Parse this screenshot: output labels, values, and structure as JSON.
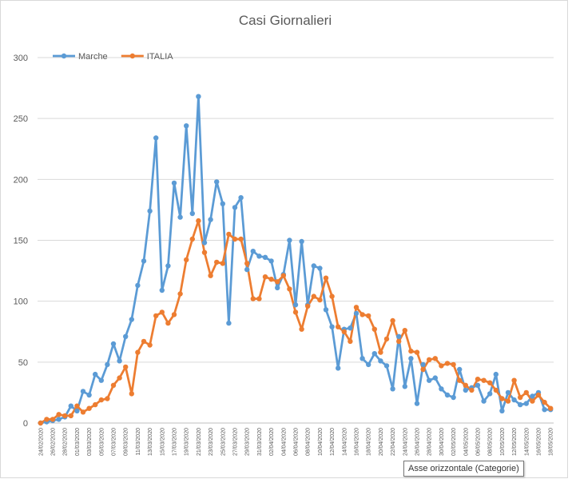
{
  "chart_data": {
    "type": "line",
    "title": "Casi Giornalieri",
    "ylim": [
      0,
      300
    ],
    "yticks": [
      "0",
      "50",
      "100",
      "150",
      "200",
      "250",
      "300"
    ],
    "grid": true,
    "legend_position": "top-left",
    "categories": [
      "24/02/2020",
      "25/02/2020",
      "26/02/2020",
      "27/02/2020",
      "28/02/2020",
      "29/02/2020",
      "01/03/2020",
      "02/03/2020",
      "03/03/2020",
      "04/03/2020",
      "05/03/2020",
      "06/03/2020",
      "07/03/2020",
      "08/03/2020",
      "09/03/2020",
      "10/03/2020",
      "11/03/2020",
      "12/03/2020",
      "13/03/2020",
      "14/03/2020",
      "15/03/2020",
      "16/03/2020",
      "17/03/2020",
      "18/03/2020",
      "19/03/2020",
      "20/03/2020",
      "21/03/2020",
      "22/03/2020",
      "23/03/2020",
      "24/03/2020",
      "25/03/2020",
      "26/03/2020",
      "27/03/2020",
      "28/03/2020",
      "29/03/2020",
      "30/03/2020",
      "31/03/2020",
      "01/04/2020",
      "02/04/2020",
      "03/04/2020",
      "04/04/2020",
      "05/04/2020",
      "06/04/2020",
      "07/04/2020",
      "08/04/2020",
      "09/04/2020",
      "10/04/2020",
      "11/04/2020",
      "12/04/2020",
      "13/04/2020",
      "14/04/2020",
      "15/04/2020",
      "16/04/2020",
      "17/04/2020",
      "18/04/2020",
      "19/04/2020",
      "20/04/2020",
      "21/04/2020",
      "22/04/2020",
      "23/04/2020",
      "24/04/2020",
      "25/04/2020",
      "26/04/2020",
      "27/04/2020",
      "28/04/2020",
      "29/04/2020",
      "30/04/2020",
      "01/05/2020",
      "02/05/2020",
      "03/05/2020",
      "04/05/2020",
      "05/05/2020",
      "06/05/2020",
      "07/05/2020",
      "08/05/2020",
      "09/05/2020",
      "10/05/2020",
      "11/05/2020",
      "12/05/2020",
      "13/05/2020",
      "14/05/2020",
      "15/05/2020",
      "16/05/2020",
      "17/05/2020",
      "18/05/2020"
    ],
    "xtick_labels": [
      "24/02/2020",
      "26/02/2020",
      "28/02/2020",
      "01/03/2020",
      "03/03/2020",
      "05/03/2020",
      "07/03/2020",
      "09/03/2020",
      "11/03/2020",
      "13/03/2020",
      "15/03/2020",
      "17/03/2020",
      "19/03/2020",
      "21/03/2020",
      "23/03/2020",
      "25/03/2020",
      "27/03/2020",
      "29/03/2020",
      "31/03/2020",
      "02/04/2020",
      "04/04/2020",
      "06/04/2020",
      "08/04/2020",
      "10/04/2020",
      "12/04/2020",
      "14/04/2020",
      "16/04/2020",
      "18/04/2020",
      "20/04/2020",
      "22/04/2020",
      "24/04/2020",
      "26/04/2020",
      "28/04/2020",
      "30/04/2020",
      "02/05/2020",
      "04/05/2020",
      "06/05/2020",
      "08/05/2020",
      "10/05/2020",
      "12/05/2020",
      "14/05/2020",
      "16/05/2020",
      "18/05/2020"
    ],
    "series": [
      {
        "name": "Marche",
        "color": "#5B9BD5",
        "values": [
          0,
          1,
          2,
          3,
          5,
          14,
          10,
          26,
          23,
          40,
          35,
          48,
          65,
          51,
          71,
          85,
          113,
          133,
          174,
          234,
          109,
          129,
          197,
          169,
          244,
          172,
          268,
          148,
          167,
          198,
          180,
          82,
          177,
          185,
          126,
          141,
          137,
          136,
          133,
          111,
          122,
          150,
          97,
          149,
          97,
          129,
          127,
          93,
          79,
          45,
          77,
          78,
          90,
          53,
          48,
          57,
          51,
          47,
          28,
          71,
          30,
          53,
          16,
          48,
          35,
          37,
          28,
          23,
          21,
          44,
          27,
          29,
          31,
          18,
          24,
          40,
          10,
          25,
          19,
          15,
          16,
          22,
          25,
          11,
          11
        ]
      },
      {
        "name": "ITALIA",
        "color": "#ED7D31",
        "values": [
          0,
          3,
          3,
          7,
          6,
          6,
          14,
          9,
          12,
          15,
          19,
          20,
          31,
          37,
          46,
          24,
          58,
          67,
          64,
          88,
          91,
          82,
          89,
          106,
          134,
          151,
          166,
          140,
          121,
          132,
          131,
          155,
          151,
          151,
          131,
          102,
          102,
          120,
          118,
          116,
          121,
          110,
          91,
          77,
          96,
          104,
          101,
          119,
          104,
          79,
          75,
          67,
          95,
          89,
          88,
          77,
          58,
          69,
          84,
          67,
          76,
          59,
          58,
          44,
          52,
          53,
          47,
          49,
          48,
          35,
          31,
          27,
          36,
          35,
          33,
          27,
          20,
          18,
          35,
          21,
          25,
          18,
          23,
          17,
          12
        ]
      }
    ],
    "x_axis_title": "Asse orizzontale (Categorie)"
  }
}
